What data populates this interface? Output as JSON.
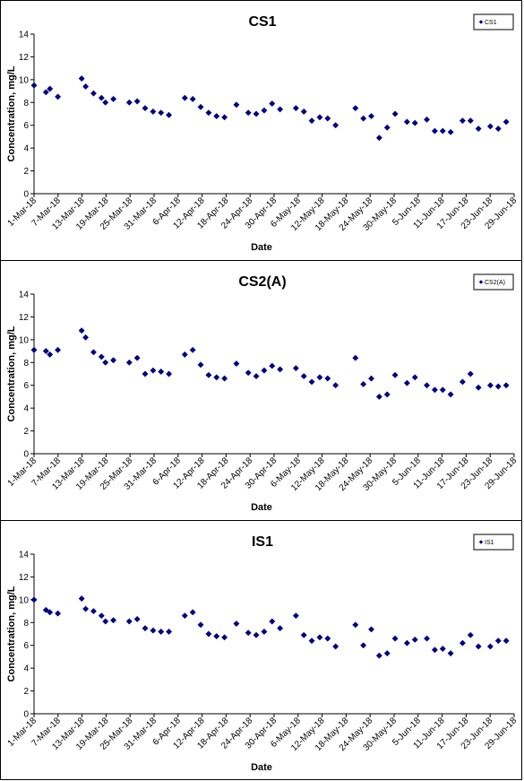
{
  "chart_data": [
    {
      "type": "scatter",
      "title": "CS1",
      "xlabel": "Date",
      "ylabel": "Concentration, mg/L",
      "ylim": [
        0,
        14
      ],
      "yticks": [
        0,
        2,
        4,
        6,
        8,
        10,
        12,
        14
      ],
      "xlim": [
        "2018-03-01",
        "2018-06-30"
      ],
      "xtick_labels": [
        "1-Mar-18",
        "7-Mar-18",
        "13-Mar-18",
        "19-Mar-18",
        "25-Mar-18",
        "31-Mar-18",
        "6-Apr-18",
        "12-Apr-18",
        "18-Apr-18",
        "24-Apr-18",
        "30-Apr-18",
        "6-May-18",
        "12-May-18",
        "18-May-18",
        "24-May-18",
        "30-May-18",
        "5-Jun-18",
        "11-Jun-18",
        "17-Jun-18",
        "23-Jun-18",
        "29-Jun-18"
      ],
      "legend": "top-right",
      "grid": false,
      "marker_color": "#000080",
      "series": [
        {
          "name": "CS1",
          "points": [
            [
              "2018-03-01",
              9.5
            ],
            [
              "2018-03-04",
              8.9
            ],
            [
              "2018-03-05",
              9.2
            ],
            [
              "2018-03-07",
              8.5
            ],
            [
              "2018-03-13",
              10.1
            ],
            [
              "2018-03-14",
              9.4
            ],
            [
              "2018-03-16",
              8.8
            ],
            [
              "2018-03-18",
              8.4
            ],
            [
              "2018-03-19",
              8.0
            ],
            [
              "2018-03-21",
              8.3
            ],
            [
              "2018-03-25",
              8.0
            ],
            [
              "2018-03-27",
              8.1
            ],
            [
              "2018-03-29",
              7.5
            ],
            [
              "2018-03-31",
              7.2
            ],
            [
              "2018-04-02",
              7.1
            ],
            [
              "2018-04-04",
              6.9
            ],
            [
              "2018-04-08",
              8.4
            ],
            [
              "2018-04-10",
              8.3
            ],
            [
              "2018-04-12",
              7.6
            ],
            [
              "2018-04-14",
              7.1
            ],
            [
              "2018-04-16",
              6.8
            ],
            [
              "2018-04-18",
              6.7
            ],
            [
              "2018-04-21",
              7.8
            ],
            [
              "2018-04-24",
              7.1
            ],
            [
              "2018-04-26",
              7.0
            ],
            [
              "2018-04-28",
              7.3
            ],
            [
              "2018-04-30",
              7.9
            ],
            [
              "2018-05-02",
              7.4
            ],
            [
              "2018-05-06",
              7.5
            ],
            [
              "2018-05-08",
              7.2
            ],
            [
              "2018-05-10",
              6.4
            ],
            [
              "2018-05-12",
              6.7
            ],
            [
              "2018-05-14",
              6.6
            ],
            [
              "2018-05-16",
              6.0
            ],
            [
              "2018-05-21",
              7.5
            ],
            [
              "2018-05-23",
              6.6
            ],
            [
              "2018-05-25",
              6.8
            ],
            [
              "2018-05-27",
              4.9
            ],
            [
              "2018-05-29",
              5.8
            ],
            [
              "2018-05-31",
              7.0
            ],
            [
              "2018-06-03",
              6.3
            ],
            [
              "2018-06-05",
              6.2
            ],
            [
              "2018-06-08",
              6.5
            ],
            [
              "2018-06-10",
              5.5
            ],
            [
              "2018-06-12",
              5.5
            ],
            [
              "2018-06-14",
              5.4
            ],
            [
              "2018-06-17",
              6.4
            ],
            [
              "2018-06-19",
              6.4
            ],
            [
              "2018-06-21",
              5.7
            ],
            [
              "2018-06-24",
              5.9
            ],
            [
              "2018-06-26",
              5.7
            ],
            [
              "2018-06-28",
              6.3
            ]
          ]
        }
      ]
    },
    {
      "type": "scatter",
      "title": "CS2(A)",
      "xlabel": "Date",
      "ylabel": "Concentration, mg/L",
      "ylim": [
        0,
        14
      ],
      "yticks": [
        0,
        2,
        4,
        6,
        8,
        10,
        12,
        14
      ],
      "xlim": [
        "2018-03-01",
        "2018-06-30"
      ],
      "xtick_labels": [
        "1-Mar-18",
        "7-Mar-18",
        "13-Mar-18",
        "19-Mar-18",
        "25-Mar-18",
        "31-Mar-18",
        "6-Apr-18",
        "12-Apr-18",
        "18-Apr-18",
        "24-Apr-18",
        "30-Apr-18",
        "6-May-18",
        "12-May-18",
        "18-May-18",
        "24-May-18",
        "30-May-18",
        "5-Jun-18",
        "11-Jun-18",
        "17-Jun-18",
        "23-Jun-18",
        "29-Jun-18"
      ],
      "legend": "top-right",
      "grid": false,
      "marker_color": "#000080",
      "series": [
        {
          "name": "CS2(A)",
          "points": [
            [
              "2018-03-01",
              9.1
            ],
            [
              "2018-03-04",
              9.0
            ],
            [
              "2018-03-05",
              8.7
            ],
            [
              "2018-03-07",
              9.1
            ],
            [
              "2018-03-13",
              10.8
            ],
            [
              "2018-03-14",
              10.2
            ],
            [
              "2018-03-16",
              8.9
            ],
            [
              "2018-03-18",
              8.5
            ],
            [
              "2018-03-19",
              8.0
            ],
            [
              "2018-03-21",
              8.2
            ],
            [
              "2018-03-25",
              8.0
            ],
            [
              "2018-03-27",
              8.4
            ],
            [
              "2018-03-29",
              7.0
            ],
            [
              "2018-03-31",
              7.3
            ],
            [
              "2018-04-02",
              7.2
            ],
            [
              "2018-04-04",
              7.0
            ],
            [
              "2018-04-08",
              8.7
            ],
            [
              "2018-04-10",
              9.1
            ],
            [
              "2018-04-12",
              7.8
            ],
            [
              "2018-04-14",
              6.9
            ],
            [
              "2018-04-16",
              6.7
            ],
            [
              "2018-04-18",
              6.6
            ],
            [
              "2018-04-21",
              7.9
            ],
            [
              "2018-04-24",
              7.1
            ],
            [
              "2018-04-26",
              6.8
            ],
            [
              "2018-04-28",
              7.3
            ],
            [
              "2018-04-30",
              7.7
            ],
            [
              "2018-05-02",
              7.4
            ],
            [
              "2018-05-06",
              7.5
            ],
            [
              "2018-05-08",
              6.8
            ],
            [
              "2018-05-10",
              6.3
            ],
            [
              "2018-05-12",
              6.7
            ],
            [
              "2018-05-14",
              6.6
            ],
            [
              "2018-05-16",
              6.0
            ],
            [
              "2018-05-21",
              8.4
            ],
            [
              "2018-05-23",
              6.1
            ],
            [
              "2018-05-25",
              6.6
            ],
            [
              "2018-05-27",
              5.0
            ],
            [
              "2018-05-29",
              5.2
            ],
            [
              "2018-05-31",
              6.9
            ],
            [
              "2018-06-03",
              6.2
            ],
            [
              "2018-06-05",
              6.7
            ],
            [
              "2018-06-08",
              6.0
            ],
            [
              "2018-06-10",
              5.6
            ],
            [
              "2018-06-12",
              5.6
            ],
            [
              "2018-06-14",
              5.2
            ],
            [
              "2018-06-17",
              6.3
            ],
            [
              "2018-06-19",
              7.0
            ],
            [
              "2018-06-21",
              5.8
            ],
            [
              "2018-06-24",
              6.0
            ],
            [
              "2018-06-26",
              5.9
            ],
            [
              "2018-06-28",
              6.0
            ]
          ]
        }
      ]
    },
    {
      "type": "scatter",
      "title": "IS1",
      "xlabel": "Date",
      "ylabel": "Concentration, mg/L",
      "ylim": [
        0,
        14
      ],
      "yticks": [
        0,
        2,
        4,
        6,
        8,
        10,
        12,
        14
      ],
      "xlim": [
        "2018-03-01",
        "2018-06-30"
      ],
      "xtick_labels": [
        "1-Mar-18",
        "7-Mar-18",
        "13-Mar-18",
        "19-Mar-18",
        "25-Mar-18",
        "31-Mar-18",
        "6-Apr-18",
        "12-Apr-18",
        "18-Apr-18",
        "24-Apr-18",
        "30-Apr-18",
        "6-May-18",
        "12-May-18",
        "18-May-18",
        "24-May-18",
        "30-May-18",
        "5-Jun-18",
        "11-Jun-18",
        "17-Jun-18",
        "23-Jun-18",
        "29-Jun-18"
      ],
      "legend": "top-right",
      "grid": false,
      "marker_color": "#000080",
      "series": [
        {
          "name": "IS1",
          "points": [
            [
              "2018-03-01",
              10.0
            ],
            [
              "2018-03-04",
              9.1
            ],
            [
              "2018-03-05",
              8.9
            ],
            [
              "2018-03-07",
              8.8
            ],
            [
              "2018-03-13",
              10.1
            ],
            [
              "2018-03-14",
              9.2
            ],
            [
              "2018-03-16",
              9.0
            ],
            [
              "2018-03-18",
              8.6
            ],
            [
              "2018-03-19",
              8.1
            ],
            [
              "2018-03-21",
              8.2
            ],
            [
              "2018-03-25",
              8.1
            ],
            [
              "2018-03-27",
              8.3
            ],
            [
              "2018-03-29",
              7.5
            ],
            [
              "2018-03-31",
              7.3
            ],
            [
              "2018-04-02",
              7.2
            ],
            [
              "2018-04-04",
              7.2
            ],
            [
              "2018-04-08",
              8.6
            ],
            [
              "2018-04-10",
              8.9
            ],
            [
              "2018-04-12",
              7.8
            ],
            [
              "2018-04-14",
              7.0
            ],
            [
              "2018-04-16",
              6.8
            ],
            [
              "2018-04-18",
              6.7
            ],
            [
              "2018-04-21",
              7.9
            ],
            [
              "2018-04-24",
              7.1
            ],
            [
              "2018-04-26",
              6.9
            ],
            [
              "2018-04-28",
              7.2
            ],
            [
              "2018-04-30",
              8.1
            ],
            [
              "2018-05-02",
              7.5
            ],
            [
              "2018-05-06",
              8.6
            ],
            [
              "2018-05-08",
              6.9
            ],
            [
              "2018-05-10",
              6.4
            ],
            [
              "2018-05-12",
              6.7
            ],
            [
              "2018-05-14",
              6.6
            ],
            [
              "2018-05-16",
              5.9
            ],
            [
              "2018-05-21",
              7.8
            ],
            [
              "2018-05-23",
              6.0
            ],
            [
              "2018-05-25",
              7.4
            ],
            [
              "2018-05-27",
              5.1
            ],
            [
              "2018-05-29",
              5.3
            ],
            [
              "2018-05-31",
              6.6
            ],
            [
              "2018-06-03",
              6.2
            ],
            [
              "2018-06-05",
              6.5
            ],
            [
              "2018-06-08",
              6.6
            ],
            [
              "2018-06-10",
              5.6
            ],
            [
              "2018-06-12",
              5.7
            ],
            [
              "2018-06-14",
              5.3
            ],
            [
              "2018-06-17",
              6.2
            ],
            [
              "2018-06-19",
              6.9
            ],
            [
              "2018-06-21",
              5.9
            ],
            [
              "2018-06-24",
              5.9
            ],
            [
              "2018-06-26",
              6.4
            ],
            [
              "2018-06-28",
              6.4
            ]
          ]
        }
      ]
    }
  ]
}
